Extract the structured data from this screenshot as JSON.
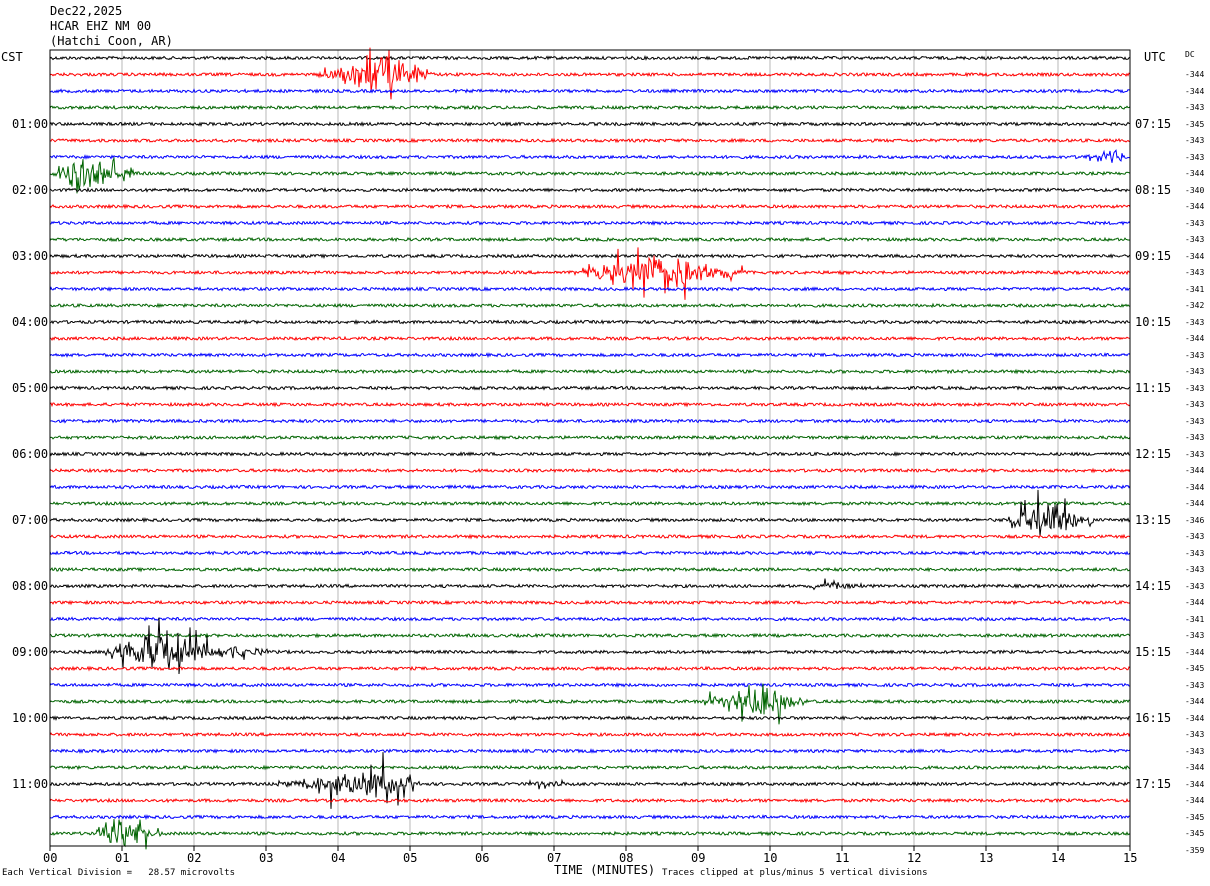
{
  "header": {
    "date": "Dec22,2025",
    "station": "HCAR EHZ NM 00",
    "location": "(Hatchi Coon, AR)"
  },
  "left_axis_label": "CST",
  "right_axis_label": "UTC",
  "dc_label": "DC",
  "colors": {
    "black": "#000000",
    "red": "#ff0000",
    "blue": "#0000ff",
    "green": "#006400",
    "grid": "#888888"
  },
  "chart_data": {
    "type": "line",
    "subtype": "helicorder",
    "xlabel": "TIME (MINUTES)",
    "xlim": [
      0,
      15
    ],
    "x_ticks": [
      "00",
      "01",
      "02",
      "03",
      "04",
      "05",
      "06",
      "07",
      "08",
      "09",
      "10",
      "11",
      "12",
      "13",
      "14",
      "15"
    ],
    "trace_minutes": 15,
    "trace_count": 48,
    "trace_color_cycle": [
      "black",
      "red",
      "blue",
      "green"
    ],
    "left_time_labels": [
      "01:00",
      "02:00",
      "03:00",
      "04:00",
      "05:00",
      "06:00",
      "07:00",
      "08:00",
      "09:00",
      "10:00",
      "11:00"
    ],
    "right_time_labels": [
      "07:15",
      "08:15",
      "09:15",
      "10:15",
      "11:15",
      "12:15",
      "13:15",
      "14:15",
      "15:15",
      "16:15",
      "17:15"
    ],
    "dc_offsets": [
      -344,
      -344,
      -343,
      -345,
      -343,
      -343,
      -344,
      -340,
      -344,
      -343,
      -343,
      -344,
      -343,
      -341,
      -342,
      -343,
      -344,
      -343,
      -343,
      -343,
      -343,
      -343,
      -343,
      -343,
      -344,
      -344,
      -344,
      -346,
      -343,
      -343,
      -343,
      -343,
      -344,
      -341,
      -343,
      -344,
      -345,
      -343,
      -344,
      -344,
      -343,
      -343,
      -344,
      -344,
      -344,
      -345,
      -345,
      -359
    ],
    "events": [
      {
        "trace": 1,
        "start_min": 3.6,
        "peak_min": 4.6,
        "end_min": 5.4,
        "amplitude_divisions": 5
      },
      {
        "trace": 6,
        "start_min": 14.3,
        "peak_min": 14.8,
        "end_min": 15.0,
        "amplitude_divisions": 2
      },
      {
        "trace": 7,
        "start_min": 0.0,
        "peak_min": 0.4,
        "end_min": 1.3,
        "amplitude_divisions": 5
      },
      {
        "trace": 13,
        "start_min": 7.2,
        "peak_min": 8.4,
        "end_min": 9.8,
        "amplitude_divisions": 5
      },
      {
        "trace": 28,
        "start_min": 13.2,
        "peak_min": 13.9,
        "end_min": 14.6,
        "amplitude_divisions": 5
      },
      {
        "trace": 32,
        "start_min": 10.2,
        "peak_min": 11.0,
        "end_min": 11.8,
        "amplitude_divisions": 1
      },
      {
        "trace": 36,
        "start_min": 0.7,
        "peak_min": 1.3,
        "end_min": 3.2,
        "amplitude_divisions": 5
      },
      {
        "trace": 39,
        "start_min": 9.0,
        "peak_min": 9.8,
        "end_min": 10.6,
        "amplitude_divisions": 5
      },
      {
        "trace": 44,
        "start_min": 3.0,
        "peak_min": 4.5,
        "end_min": 5.2,
        "amplitude_divisions": 4
      },
      {
        "trace": 44,
        "start_min": 6.5,
        "peak_min": 6.8,
        "end_min": 7.4,
        "amplitude_divisions": 1
      },
      {
        "trace": 47,
        "start_min": 0.6,
        "peak_min": 0.9,
        "end_min": 1.6,
        "amplitude_divisions": 5
      }
    ]
  },
  "footer": {
    "scale_text": "Each Vertical Division =   28.57 microvolts",
    "clip_text": "Traces clipped at plus/minus 5 vertical divisions"
  }
}
